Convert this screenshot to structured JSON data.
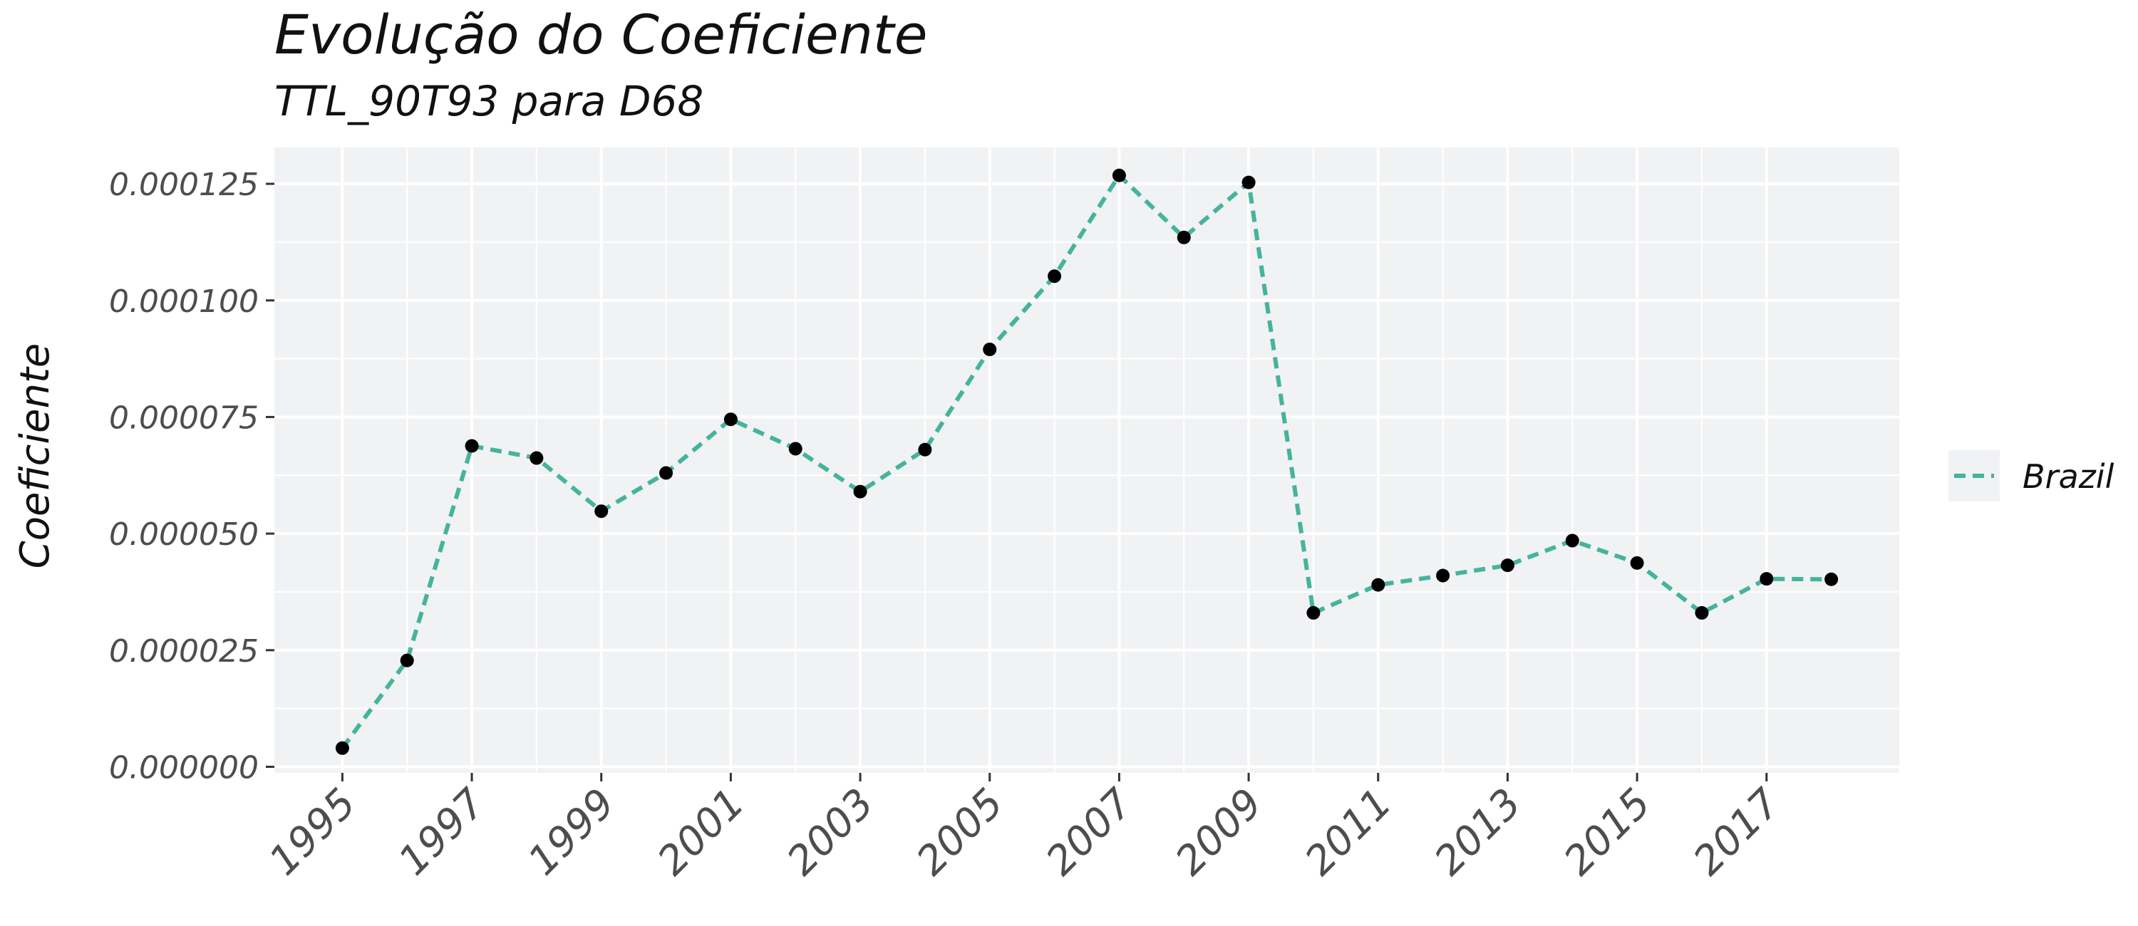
{
  "chart_data": {
    "type": "line",
    "title": "Evolução do Coeficiente",
    "subtitle": "TTL_90T93 para D68",
    "xlabel": "",
    "ylabel": "Coeficiente",
    "x": [
      1995,
      1996,
      1997,
      1998,
      1999,
      2000,
      2001,
      2002,
      2003,
      2004,
      2005,
      2006,
      2007,
      2008,
      2009,
      2010,
      2011,
      2012,
      2013,
      2014,
      2015,
      2016,
      2017,
      2018
    ],
    "x_ticks": [
      "1995",
      "1997",
      "1999",
      "2001",
      "2003",
      "2005",
      "2007",
      "2009",
      "2011",
      "2013",
      "2015",
      "2017"
    ],
    "y_ticks": [
      "0.000000",
      "0.000025",
      "0.000050",
      "0.000075",
      "0.000100",
      "0.000125"
    ],
    "xlim": [
      1993.95,
      2019.05
    ],
    "ylim": [
      -1.3e-06,
      0.0001328
    ],
    "grid": true,
    "legend_position": "right",
    "series": [
      {
        "name": "Brazil",
        "line_style": "dashed",
        "color": "#45B39D",
        "point_color": "#000000",
        "values": [
          4e-06,
          2.28e-05,
          6.88e-05,
          6.62e-05,
          5.48e-05,
          6.3e-05,
          7.45e-05,
          6.82e-05,
          5.9e-05,
          6.8e-05,
          8.95e-05,
          0.0001052,
          0.0001268,
          0.0001135,
          0.0001253,
          3.3e-05,
          3.9e-05,
          4.1e-05,
          4.32e-05,
          4.85e-05,
          4.37e-05,
          3.3e-05,
          4.03e-05,
          4.02e-05
        ]
      }
    ]
  }
}
